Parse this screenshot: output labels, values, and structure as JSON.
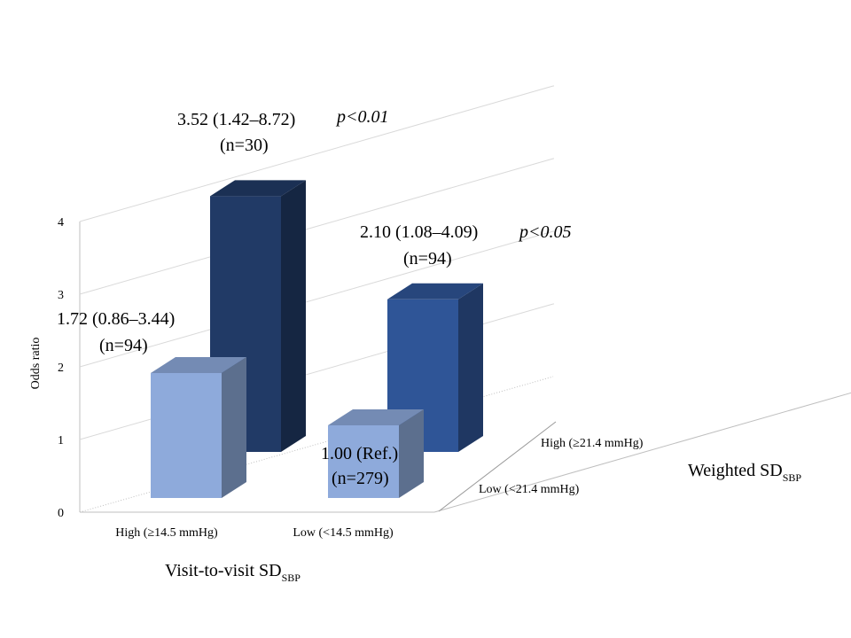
{
  "chart_data": {
    "type": "bar",
    "subtype": "3d-grouped",
    "ylabel": "Odds ratio",
    "ylim": [
      0,
      4
    ],
    "yticks": [
      "0",
      "1",
      "2",
      "3",
      "4"
    ],
    "grid": true,
    "xaxis_categories": [
      "High (≥14.5 mmHg)",
      "Low (<14.5 mmHg)"
    ],
    "xlabel": {
      "main": "Visit-to-visit SD",
      "sub": "SBP"
    },
    "depth_categories": [
      "High (≥21.4 mmHg)",
      "Low (<21.4 mmHg)"
    ],
    "depth_label": {
      "main": "Weighted SD",
      "sub": "SBP"
    },
    "bars": [
      {
        "x": "High (≥14.5 mmHg)",
        "depth": "High (≥21.4 mmHg)",
        "value": 3.52,
        "ci_text": "3.52 (1.42–8.72)",
        "n_text": "(n=30)",
        "p_text": "p<0.01",
        "color": "#213a66"
      },
      {
        "x": "Low (<14.5 mmHg)",
        "depth": "High (≥21.4 mmHg)",
        "value": 2.1,
        "ci_text": "2.10 (1.08–4.09)",
        "n_text": "(n=94)",
        "p_text": "p<0.05",
        "color": "#2f5597"
      },
      {
        "x": "High (≥14.5 mmHg)",
        "depth": "Low (<21.4 mmHg)",
        "value": 1.72,
        "ci_text": "1.72 (0.86–3.44)",
        "n_text": "(n=94)",
        "p_text": "",
        "color": "#8eaadb"
      },
      {
        "x": "Low (<14.5 mmHg)",
        "depth": "Low (<21.4 mmHg)",
        "value": 1.0,
        "ci_text": "1.00 (Ref.)",
        "n_text": "(n=279)",
        "p_text": "",
        "color": "#8eaadb"
      }
    ]
  }
}
